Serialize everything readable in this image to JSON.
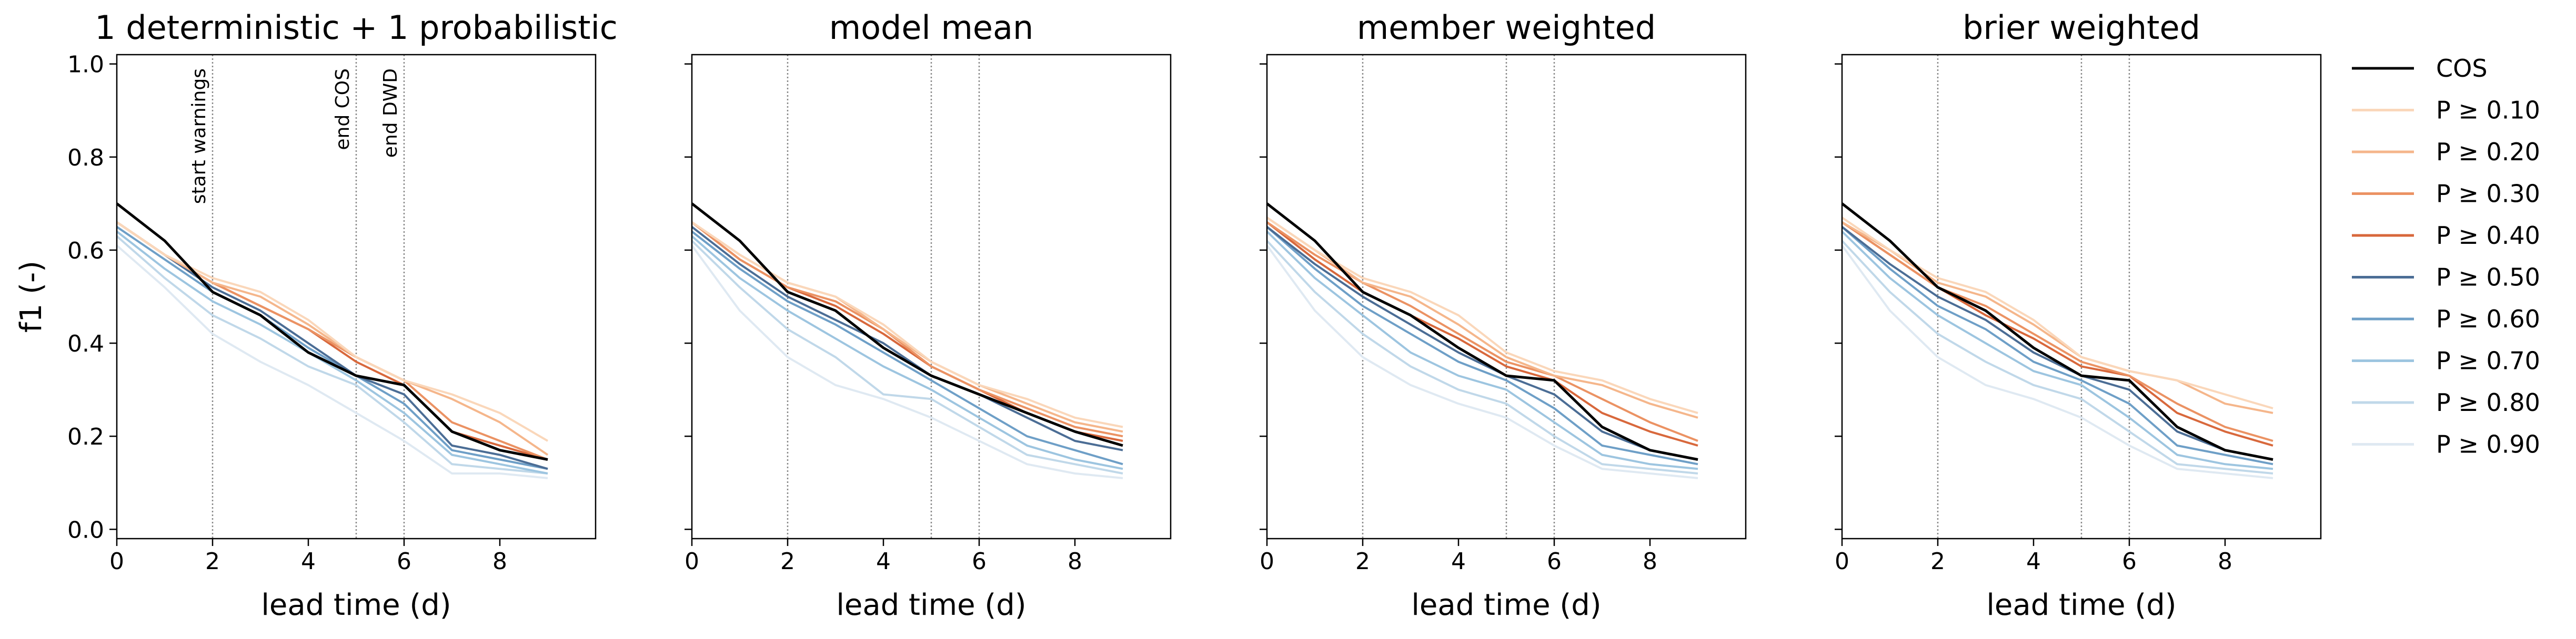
{
  "chart_data": [
    {
      "type": "line",
      "title": "1 deterministic + 1 probabilistic",
      "xlabel": "lead time (d)",
      "ylabel": "f1 (-)",
      "xlim": [
        0,
        10
      ],
      "ylim": [
        -0.02,
        1.02
      ],
      "xticks": [
        "0",
        "2",
        "4",
        "6",
        "8"
      ],
      "yticks": [
        "0.0",
        "0.2",
        "0.4",
        "0.6",
        "0.8",
        "1.0"
      ],
      "show_ytick_labels": true,
      "grid": false,
      "x": [
        0,
        1,
        2,
        3,
        4,
        5,
        6,
        7,
        8,
        9
      ],
      "vlines": [
        {
          "x": 2,
          "label": "start warnings"
        },
        {
          "x": 5,
          "label": "end COS"
        },
        {
          "x": 6,
          "label": "end DWD"
        }
      ],
      "series": [
        {
          "name": "P ≥ 0.90",
          "color": "#dfe9f2",
          "values": [
            0.61,
            0.52,
            0.42,
            0.36,
            0.31,
            0.25,
            0.19,
            0.12,
            0.12,
            0.11
          ]
        },
        {
          "name": "P ≥ 0.80",
          "color": "#c0d8e9",
          "values": [
            0.63,
            0.54,
            0.46,
            0.41,
            0.35,
            0.31,
            0.23,
            0.14,
            0.13,
            0.12
          ]
        },
        {
          "name": "P ≥ 0.70",
          "color": "#9dc5e0",
          "values": [
            0.64,
            0.56,
            0.49,
            0.44,
            0.38,
            0.32,
            0.25,
            0.16,
            0.14,
            0.12
          ]
        },
        {
          "name": "P ≥ 0.60",
          "color": "#6e9fc7",
          "values": [
            0.65,
            0.58,
            0.51,
            0.46,
            0.39,
            0.33,
            0.27,
            0.17,
            0.15,
            0.13
          ]
        },
        {
          "name": "P ≥ 0.50",
          "color": "#4b6d95",
          "values": [
            0.66,
            0.59,
            0.52,
            0.47,
            0.4,
            0.33,
            0.29,
            0.18,
            0.16,
            0.13
          ]
        },
        {
          "name": "P ≥ 0.40",
          "color": "#d8683c",
          "values": [
            0.66,
            0.59,
            0.53,
            0.48,
            0.43,
            0.36,
            0.31,
            0.21,
            0.18,
            0.15
          ]
        },
        {
          "name": "P ≥ 0.30",
          "color": "#eb9263",
          "values": [
            0.66,
            0.59,
            0.53,
            0.48,
            0.43,
            0.37,
            0.32,
            0.23,
            0.19,
            0.15
          ]
        },
        {
          "name": "P ≥ 0.20",
          "color": "#f5b68b",
          "values": [
            0.66,
            0.59,
            0.53,
            0.5,
            0.44,
            0.37,
            0.32,
            0.28,
            0.23,
            0.16
          ]
        },
        {
          "name": "P ≥ 0.10",
          "color": "#fad7ba",
          "values": [
            0.66,
            0.59,
            0.54,
            0.51,
            0.45,
            0.37,
            0.32,
            0.29,
            0.25,
            0.19
          ]
        },
        {
          "name": "COS",
          "color": "#000000",
          "values": [
            0.7,
            0.62,
            0.51,
            0.46,
            0.38,
            0.33,
            0.31,
            0.21,
            0.17,
            0.15
          ]
        }
      ]
    },
    {
      "type": "line",
      "title": "model mean",
      "xlabel": "lead time (d)",
      "ylabel": "",
      "xlim": [
        0,
        10
      ],
      "ylim": [
        -0.02,
        1.02
      ],
      "xticks": [
        "0",
        "2",
        "4",
        "6",
        "8"
      ],
      "yticks": [
        "0.0",
        "0.2",
        "0.4",
        "0.6",
        "0.8",
        "1.0"
      ],
      "show_ytick_labels": false,
      "grid": false,
      "x": [
        0,
        1,
        2,
        3,
        4,
        5,
        6,
        7,
        8,
        9
      ],
      "vlines": [
        {
          "x": 2,
          "label": ""
        },
        {
          "x": 5,
          "label": ""
        },
        {
          "x": 6,
          "label": ""
        }
      ],
      "series": [
        {
          "name": "P ≥ 0.90",
          "color": "#dfe9f2",
          "values": [
            0.61,
            0.47,
            0.37,
            0.31,
            0.28,
            0.24,
            0.19,
            0.14,
            0.12,
            0.11
          ]
        },
        {
          "name": "P ≥ 0.80",
          "color": "#c0d8e9",
          "values": [
            0.62,
            0.52,
            0.43,
            0.37,
            0.29,
            0.28,
            0.22,
            0.16,
            0.14,
            0.12
          ]
        },
        {
          "name": "P ≥ 0.70",
          "color": "#9dc5e0",
          "values": [
            0.63,
            0.54,
            0.47,
            0.41,
            0.35,
            0.3,
            0.24,
            0.18,
            0.15,
            0.13
          ]
        },
        {
          "name": "P ≥ 0.60",
          "color": "#6e9fc7",
          "values": [
            0.64,
            0.56,
            0.49,
            0.44,
            0.38,
            0.32,
            0.26,
            0.2,
            0.17,
            0.14
          ]
        },
        {
          "name": "P ≥ 0.50",
          "color": "#4b6d95",
          "values": [
            0.65,
            0.57,
            0.5,
            0.45,
            0.4,
            0.33,
            0.29,
            0.24,
            0.19,
            0.17
          ]
        },
        {
          "name": "P ≥ 0.40",
          "color": "#d8683c",
          "values": [
            0.66,
            0.58,
            0.52,
            0.48,
            0.42,
            0.35,
            0.3,
            0.25,
            0.21,
            0.19
          ]
        },
        {
          "name": "P ≥ 0.30",
          "color": "#eb9263",
          "values": [
            0.66,
            0.58,
            0.52,
            0.49,
            0.43,
            0.35,
            0.3,
            0.26,
            0.22,
            0.2
          ]
        },
        {
          "name": "P ≥ 0.20",
          "color": "#f5b68b",
          "values": [
            0.66,
            0.59,
            0.53,
            0.5,
            0.43,
            0.36,
            0.31,
            0.27,
            0.23,
            0.21
          ]
        },
        {
          "name": "P ≥ 0.10",
          "color": "#fad7ba",
          "values": [
            0.66,
            0.59,
            0.53,
            0.5,
            0.44,
            0.36,
            0.31,
            0.28,
            0.24,
            0.22
          ]
        },
        {
          "name": "COS",
          "color": "#000000",
          "values": [
            0.7,
            0.62,
            0.51,
            0.47,
            0.39,
            0.33,
            0.29,
            0.25,
            0.21,
            0.18
          ]
        }
      ]
    },
    {
      "type": "line",
      "title": "member weighted",
      "xlabel": "lead time (d)",
      "ylabel": "",
      "xlim": [
        0,
        10
      ],
      "ylim": [
        -0.02,
        1.02
      ],
      "xticks": [
        "0",
        "2",
        "4",
        "6",
        "8"
      ],
      "yticks": [
        "0.0",
        "0.2",
        "0.4",
        "0.6",
        "0.8",
        "1.0"
      ],
      "show_ytick_labels": false,
      "grid": false,
      "x": [
        0,
        1,
        2,
        3,
        4,
        5,
        6,
        7,
        8,
        9
      ],
      "vlines": [
        {
          "x": 2,
          "label": ""
        },
        {
          "x": 5,
          "label": ""
        },
        {
          "x": 6,
          "label": ""
        }
      ],
      "series": [
        {
          "name": "P ≥ 0.90",
          "color": "#dfe9f2",
          "values": [
            0.61,
            0.47,
            0.37,
            0.31,
            0.27,
            0.24,
            0.18,
            0.13,
            0.12,
            0.11
          ]
        },
        {
          "name": "P ≥ 0.80",
          "color": "#c0d8e9",
          "values": [
            0.62,
            0.51,
            0.42,
            0.35,
            0.3,
            0.27,
            0.2,
            0.14,
            0.13,
            0.12
          ]
        },
        {
          "name": "P ≥ 0.70",
          "color": "#9dc5e0",
          "values": [
            0.64,
            0.54,
            0.46,
            0.38,
            0.33,
            0.3,
            0.23,
            0.16,
            0.14,
            0.13
          ]
        },
        {
          "name": "P ≥ 0.60",
          "color": "#6e9fc7",
          "values": [
            0.65,
            0.56,
            0.48,
            0.42,
            0.36,
            0.32,
            0.26,
            0.18,
            0.16,
            0.14
          ]
        },
        {
          "name": "P ≥ 0.50",
          "color": "#4b6d95",
          "values": [
            0.65,
            0.57,
            0.5,
            0.44,
            0.38,
            0.33,
            0.29,
            0.21,
            0.17,
            0.15
          ]
        },
        {
          "name": "P ≥ 0.40",
          "color": "#d8683c",
          "values": [
            0.66,
            0.58,
            0.51,
            0.46,
            0.41,
            0.35,
            0.32,
            0.25,
            0.21,
            0.18
          ]
        },
        {
          "name": "P ≥ 0.30",
          "color": "#eb9263",
          "values": [
            0.66,
            0.59,
            0.53,
            0.48,
            0.42,
            0.36,
            0.33,
            0.28,
            0.23,
            0.19
          ]
        },
        {
          "name": "P ≥ 0.20",
          "color": "#f5b68b",
          "values": [
            0.67,
            0.6,
            0.53,
            0.5,
            0.44,
            0.37,
            0.33,
            0.31,
            0.27,
            0.24
          ]
        },
        {
          "name": "P ≥ 0.10",
          "color": "#fad7ba",
          "values": [
            0.67,
            0.6,
            0.54,
            0.51,
            0.46,
            0.38,
            0.34,
            0.32,
            0.28,
            0.25
          ]
        },
        {
          "name": "COS",
          "color": "#000000",
          "values": [
            0.7,
            0.62,
            0.51,
            0.46,
            0.39,
            0.33,
            0.32,
            0.22,
            0.17,
            0.15
          ]
        }
      ]
    },
    {
      "type": "line",
      "title": "brier weighted",
      "xlabel": "lead time (d)",
      "ylabel": "",
      "xlim": [
        0,
        10
      ],
      "ylim": [
        -0.02,
        1.02
      ],
      "xticks": [
        "0",
        "2",
        "4",
        "6",
        "8"
      ],
      "yticks": [
        "0.0",
        "0.2",
        "0.4",
        "0.6",
        "0.8",
        "1.0"
      ],
      "show_ytick_labels": false,
      "grid": false,
      "x": [
        0,
        1,
        2,
        3,
        4,
        5,
        6,
        7,
        8,
        9
      ],
      "vlines": [
        {
          "x": 2,
          "label": ""
        },
        {
          "x": 5,
          "label": ""
        },
        {
          "x": 6,
          "label": ""
        }
      ],
      "series": [
        {
          "name": "P ≥ 0.90",
          "color": "#dfe9f2",
          "values": [
            0.61,
            0.47,
            0.37,
            0.31,
            0.28,
            0.24,
            0.18,
            0.13,
            0.12,
            0.11
          ]
        },
        {
          "name": "P ≥ 0.80",
          "color": "#c0d8e9",
          "values": [
            0.62,
            0.51,
            0.42,
            0.36,
            0.31,
            0.28,
            0.21,
            0.14,
            0.13,
            0.12
          ]
        },
        {
          "name": "P ≥ 0.70",
          "color": "#9dc5e0",
          "values": [
            0.64,
            0.54,
            0.46,
            0.4,
            0.34,
            0.31,
            0.24,
            0.16,
            0.14,
            0.13
          ]
        },
        {
          "name": "P ≥ 0.60",
          "color": "#6e9fc7",
          "values": [
            0.65,
            0.56,
            0.48,
            0.43,
            0.36,
            0.32,
            0.27,
            0.18,
            0.16,
            0.14
          ]
        },
        {
          "name": "P ≥ 0.50",
          "color": "#4b6d95",
          "values": [
            0.65,
            0.57,
            0.5,
            0.45,
            0.38,
            0.33,
            0.3,
            0.21,
            0.17,
            0.15
          ]
        },
        {
          "name": "P ≥ 0.40",
          "color": "#d8683c",
          "values": [
            0.66,
            0.59,
            0.52,
            0.46,
            0.41,
            0.35,
            0.33,
            0.25,
            0.21,
            0.18
          ]
        },
        {
          "name": "P ≥ 0.30",
          "color": "#eb9263",
          "values": [
            0.66,
            0.59,
            0.52,
            0.48,
            0.42,
            0.36,
            0.33,
            0.27,
            0.22,
            0.19
          ]
        },
        {
          "name": "P ≥ 0.20",
          "color": "#f5b68b",
          "values": [
            0.66,
            0.6,
            0.53,
            0.5,
            0.44,
            0.37,
            0.34,
            0.32,
            0.27,
            0.25
          ]
        },
        {
          "name": "P ≥ 0.10",
          "color": "#fad7ba",
          "values": [
            0.67,
            0.6,
            0.54,
            0.51,
            0.45,
            0.37,
            0.34,
            0.32,
            0.29,
            0.26
          ]
        },
        {
          "name": "COS",
          "color": "#000000",
          "values": [
            0.7,
            0.62,
            0.52,
            0.47,
            0.39,
            0.33,
            0.32,
            0.22,
            0.17,
            0.15
          ]
        }
      ]
    }
  ],
  "legend": {
    "placement": "right",
    "entries": [
      {
        "label": "COS",
        "color": "#000000"
      },
      {
        "label": "P ≥ 0.10",
        "color": "#fad7ba"
      },
      {
        "label": "P ≥ 0.20",
        "color": "#f5b68b"
      },
      {
        "label": "P ≥ 0.30",
        "color": "#eb9263"
      },
      {
        "label": "P ≥ 0.40",
        "color": "#d8683c"
      },
      {
        "label": "P ≥ 0.50",
        "color": "#4b6d95"
      },
      {
        "label": "P ≥ 0.60",
        "color": "#6e9fc7"
      },
      {
        "label": "P ≥ 0.70",
        "color": "#9dc5e0"
      },
      {
        "label": "P ≥ 0.80",
        "color": "#c0d8e9"
      },
      {
        "label": "P ≥ 0.90",
        "color": "#dfe9f2"
      }
    ]
  }
}
